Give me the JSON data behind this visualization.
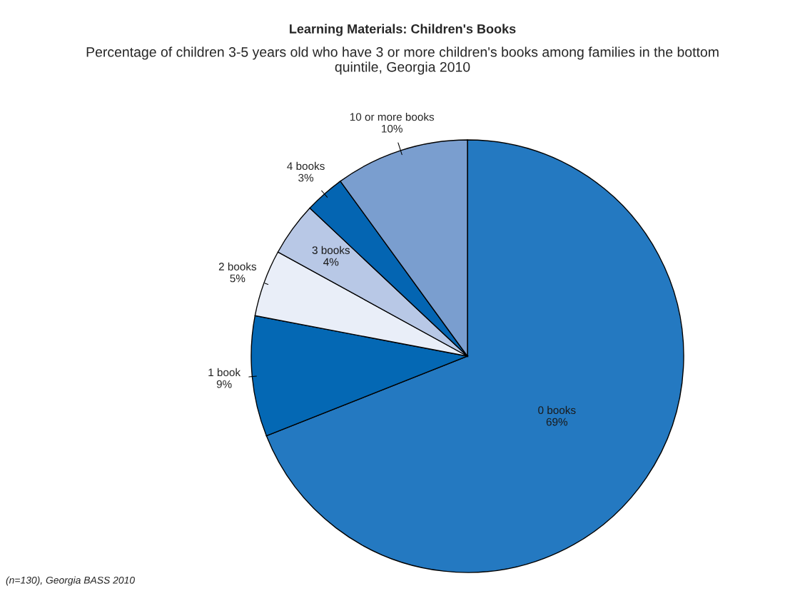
{
  "chart_data": {
    "type": "pie",
    "title": "Learning Materials: Children's Books",
    "subtitle": "Percentage of children 3-5 years old who have 3 or more children's books among families in the bottom quintile, Georgia 2010",
    "categories": [
      "0 books",
      "1 book",
      "2 books",
      "3 books",
      "4 books",
      "10 or more books"
    ],
    "values": [
      69,
      9,
      5,
      4,
      3,
      10
    ],
    "value_labels": [
      "69%",
      "9%",
      "5%",
      "4%",
      "3%",
      "10%"
    ],
    "colors": [
      "#2479c1",
      "#0468b4",
      "#e9eef8",
      "#b8c8e6",
      "#0465b2",
      "#7a9ecf"
    ],
    "annotations": [
      "(n=130), Georgia BASS 2010"
    ]
  }
}
